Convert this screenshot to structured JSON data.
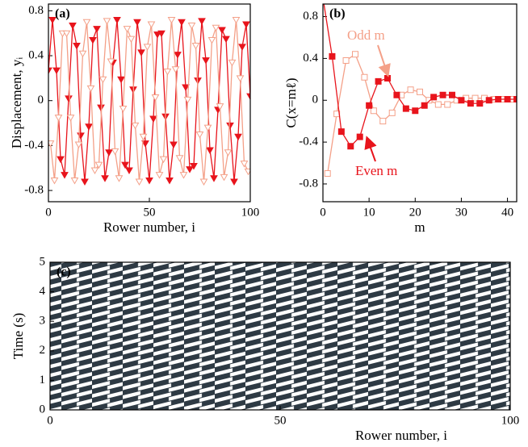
{
  "chart_data": [
    {
      "type": "line",
      "panel_label": "(a)",
      "xlabel": "Rower number, i",
      "ylabel": "Displacement, yᵢ",
      "xlim": [
        0,
        100
      ],
      "ylim": [
        -0.9,
        0.86
      ],
      "xticks": [
        0,
        50,
        100
      ],
      "yticks": [
        -0.8,
        -0.4,
        0,
        0.4,
        0.8
      ],
      "series": [
        {
          "color": "#e8141c",
          "marker": "triangle-down",
          "filled": true,
          "x": [
            0,
            2,
            4,
            6,
            8,
            10,
            12,
            14,
            16,
            18,
            20,
            22,
            24,
            26,
            28,
            30,
            32,
            34,
            36,
            38,
            40,
            42,
            44,
            46,
            48,
            50,
            52,
            54,
            56,
            58,
            60,
            62,
            64,
            66,
            68,
            70,
            72,
            74,
            76,
            78,
            80,
            82,
            84,
            86,
            88,
            90,
            92,
            94,
            96,
            98,
            100
          ],
          "values": [
            0.27,
            0.72,
            0.27,
            -0.52,
            -0.66,
            0.02,
            0.67,
            0.49,
            -0.31,
            -0.72,
            -0.23,
            0.54,
            0.64,
            -0.06,
            -0.69,
            -0.46,
            0.34,
            0.72,
            0.19,
            -0.57,
            -0.62,
            0.1,
            0.7,
            0.43,
            -0.38,
            -0.71,
            -0.16,
            0.59,
            0.6,
            -0.14,
            -0.71,
            -0.39,
            0.41,
            0.7,
            0.12,
            -0.61,
            -0.58,
            0.18,
            0.71,
            0.36,
            -0.44,
            -0.69,
            -0.08,
            0.63,
            0.55,
            -0.22,
            -0.72,
            -0.32,
            0.48,
            0.68,
            0.04
          ]
        },
        {
          "color": "#f4a088",
          "marker": "triangle-down",
          "filled": false,
          "x": [
            1,
            3,
            5,
            7,
            9,
            11,
            13,
            15,
            17,
            19,
            21,
            23,
            25,
            27,
            29,
            31,
            33,
            35,
            37,
            39,
            41,
            43,
            45,
            47,
            49,
            51,
            53,
            55,
            57,
            59,
            61,
            63,
            65,
            67,
            69,
            71,
            73,
            75,
            77,
            79,
            81,
            83,
            85,
            87,
            89,
            91,
            93,
            95,
            97,
            99
          ],
          "values": [
            -0.38,
            -0.71,
            -0.15,
            0.6,
            0.6,
            -0.15,
            -0.71,
            -0.39,
            0.42,
            0.7,
            0.11,
            -0.62,
            -0.57,
            0.19,
            0.71,
            0.35,
            -0.45,
            -0.69,
            -0.07,
            0.64,
            0.55,
            -0.22,
            -0.72,
            -0.32,
            0.48,
            0.68,
            0.03,
            -0.66,
            -0.52,
            0.26,
            0.72,
            0.28,
            -0.51,
            -0.66,
            0.01,
            0.67,
            0.49,
            -0.3,
            -0.72,
            -0.24,
            0.54,
            0.65,
            -0.05,
            -0.68,
            -0.46,
            0.34,
            0.72,
            0.2,
            -0.56,
            -0.63
          ]
        }
      ]
    },
    {
      "type": "line",
      "panel_label": "(b)",
      "xlabel": "m",
      "ylabel": "C(x=mℓ)",
      "xlim": [
        0,
        42
      ],
      "ylim": [
        -0.97,
        0.92
      ],
      "xticks": [
        0,
        10,
        20,
        30,
        40
      ],
      "yticks": [
        -0.8,
        -0.4,
        0,
        0.4,
        0.8
      ],
      "annotations": [
        "Odd m",
        "Even m"
      ],
      "series": [
        {
          "color": "#f4a088",
          "marker": "square",
          "filled": false,
          "x": [
            1,
            3,
            5,
            7,
            9,
            11,
            13,
            15,
            17,
            19,
            21,
            23,
            25,
            27,
            29,
            31,
            33,
            35,
            37,
            39,
            41
          ],
          "values": [
            -0.7,
            -0.13,
            0.38,
            0.44,
            0.22,
            -0.1,
            -0.2,
            -0.12,
            0.05,
            0.1,
            0.08,
            0,
            -0.04,
            -0.04,
            0,
            0.02,
            0.02,
            0.02,
            0.01,
            0.01,
            0.01
          ]
        },
        {
          "color": "#e8141c",
          "marker": "square",
          "filled": true,
          "x": [
            0,
            2,
            4,
            6,
            8,
            10,
            12,
            14,
            16,
            18,
            20,
            22,
            24,
            26,
            28,
            30,
            32,
            34,
            36,
            38,
            40,
            42
          ],
          "values": [
            0.98,
            0.42,
            -0.3,
            -0.44,
            -0.35,
            -0.05,
            0.18,
            0.21,
            0.05,
            -0.08,
            -0.1,
            -0.05,
            0.03,
            0.05,
            0.05,
            0,
            -0.03,
            -0.03,
            0,
            0.01,
            0.01,
            0.01
          ]
        }
      ]
    },
    {
      "type": "raster",
      "panel_label": "(c)",
      "xlabel": "Rower number, i",
      "ylabel": "Time (s)",
      "xlim": [
        0,
        100
      ],
      "ylim": [
        0,
        5
      ],
      "xticks": [
        0,
        50,
        100
      ],
      "yticks": [
        0,
        1,
        2,
        3,
        4,
        5
      ]
    }
  ]
}
